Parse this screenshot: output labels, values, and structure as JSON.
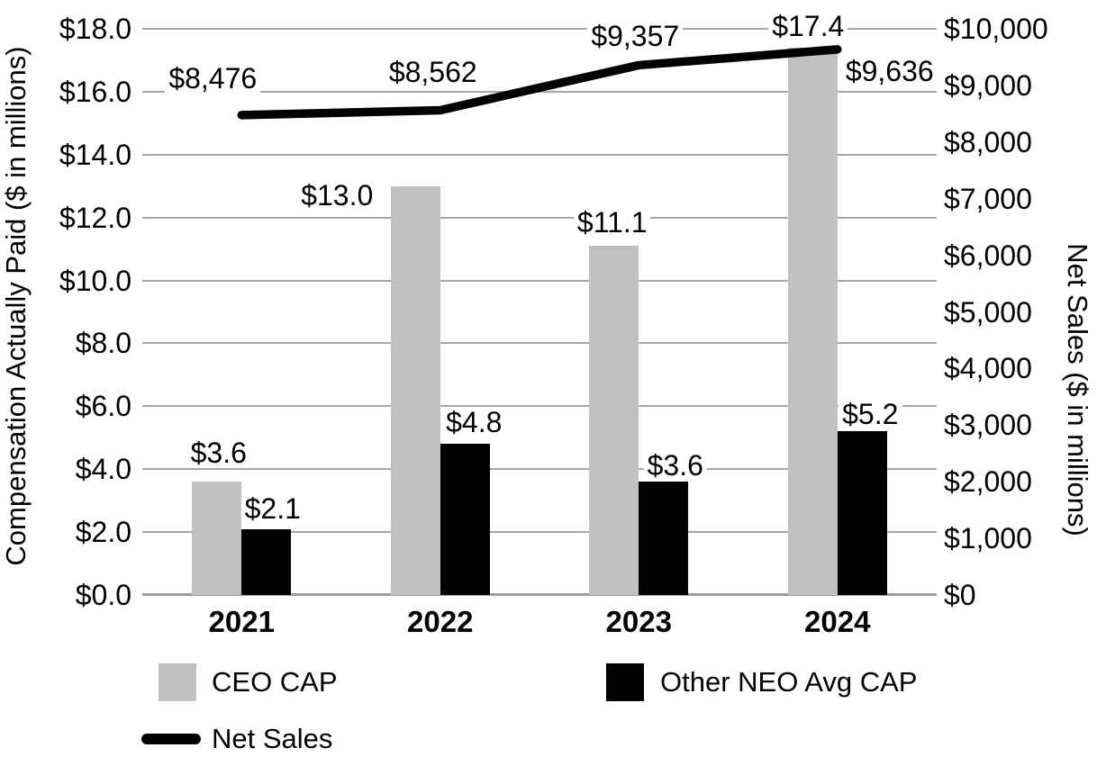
{
  "chart_data": {
    "type": "combo",
    "categories": [
      "2021",
      "2022",
      "2023",
      "2024"
    ],
    "series": [
      {
        "name": "CEO CAP",
        "chart_type": "bar",
        "axis": "left",
        "color": "#c1c1c1",
        "values": [
          3.6,
          13.0,
          11.1,
          17.4
        ],
        "data_labels": [
          "$3.6",
          "$13.0",
          "$11.1",
          "$17.4"
        ]
      },
      {
        "name": "Other NEO Avg CAP",
        "chart_type": "bar",
        "axis": "left",
        "color": "#000000",
        "values": [
          2.1,
          4.8,
          3.6,
          5.2
        ],
        "data_labels": [
          "$2.1",
          "$4.8",
          "$3.6",
          "$5.2"
        ]
      },
      {
        "name": "Net Sales",
        "chart_type": "line",
        "axis": "right",
        "color": "#000000",
        "values": [
          8476,
          8562,
          9357,
          9636
        ],
        "data_labels": [
          "$8,476",
          "$8,562",
          "$9,357",
          "$9,636"
        ]
      }
    ],
    "left_axis": {
      "title": "Compensation Actually Paid ($ in millions)",
      "min": 0,
      "max": 18,
      "tick_step": 2,
      "tick_labels": [
        "$18.0",
        "$16.0",
        "$14.0",
        "$12.0",
        "$10.0",
        "$8.0",
        "$6.0",
        "$4.0",
        "$2.0",
        "$0.0"
      ]
    },
    "right_axis": {
      "title": "Net Sales ($ in millions)",
      "min": 0,
      "max": 10000,
      "tick_step": 1000,
      "tick_labels": [
        "$10,000",
        "$9,000",
        "$8,000",
        "$7,000",
        "$6,000",
        "$5,000",
        "$4,000",
        "$3,000",
        "$2,000",
        "$1,000",
        "$0"
      ]
    },
    "grid": "on",
    "legend_position": "bottom-left"
  },
  "legend": {
    "items": [
      {
        "label": "CEO CAP",
        "swatch": "square",
        "color": "#c1c1c1"
      },
      {
        "label": "Other NEO Avg CAP",
        "swatch": "square",
        "color": "#000000"
      },
      {
        "label": "Net Sales",
        "swatch": "line",
        "color": "#000000"
      }
    ]
  },
  "colors": {
    "background": "#ffffff",
    "gridline": "#a6a6a6",
    "x_axis_line": "#9c9c9c",
    "bar_gray": "#c1c1c1",
    "bar_black": "#000000",
    "line_black": "#000000",
    "text": "#000000"
  }
}
